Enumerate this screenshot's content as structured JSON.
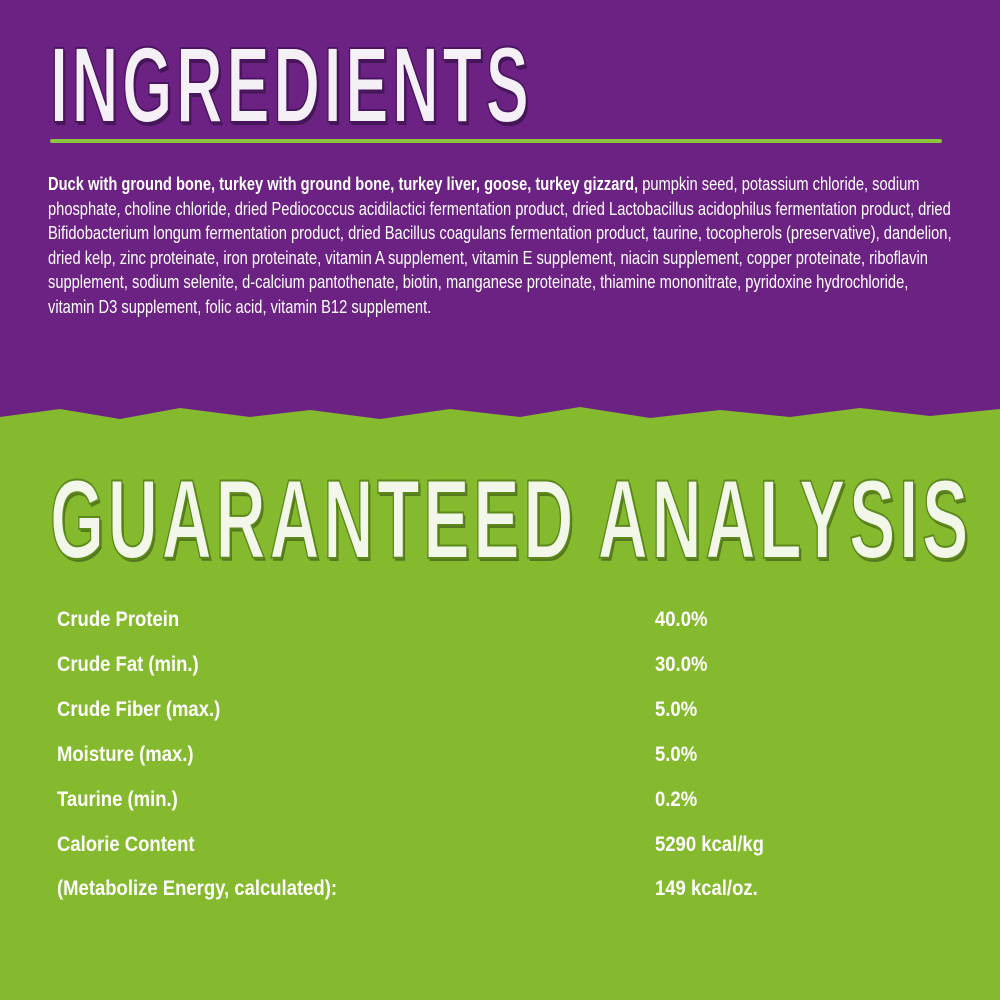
{
  "ingredients": {
    "title": "INGREDIENTS",
    "bold_text": "Duck with ground bone, turkey with ground bone, turkey liver, goose, turkey gizzard,",
    "text": " pumpkin seed, potassium chloride, sodium phosphate, choline chloride, dried Pediococcus acidilactici fermentation product, dried Lactobacillus acidophilus fermentation product, dried Bifidobacterium longum fermentation product, dried Bacillus coagulans fermentation product, taurine, tocopherols (preservative), dandelion, dried kelp, zinc proteinate, iron proteinate, vitamin A supplement, vitamin E supplement, niacin supplement, copper proteinate, riboflavin supplement, sodium selenite, d-calcium pantothenate, biotin, manganese proteinate, thiamine mononitrate, pyridoxine hydrochloride, vitamin D3 supplement, folic acid, vitamin B12 supplement."
  },
  "analysis": {
    "title": "GUARANTEED ANALYSIS",
    "rows": [
      {
        "label": "Crude Protein",
        "value": "40.0%"
      },
      {
        "label": "Crude Fat (min.)",
        "value": "30.0%"
      },
      {
        "label": "Crude Fiber (max.)",
        "value": "5.0%"
      },
      {
        "label": "Moisture (max.)",
        "value": "5.0%"
      },
      {
        "label": "Taurine (min.)",
        "value": "0.2%"
      },
      {
        "label": "Calorie Content",
        "value": "5290 kcal/kg"
      },
      {
        "label": "(Metabolize Energy, calculated):",
        "value": "149 kcal/oz."
      }
    ]
  },
  "colors": {
    "purple": "#6b2283",
    "green": "#85b92e",
    "rule": "#8cc63f"
  }
}
